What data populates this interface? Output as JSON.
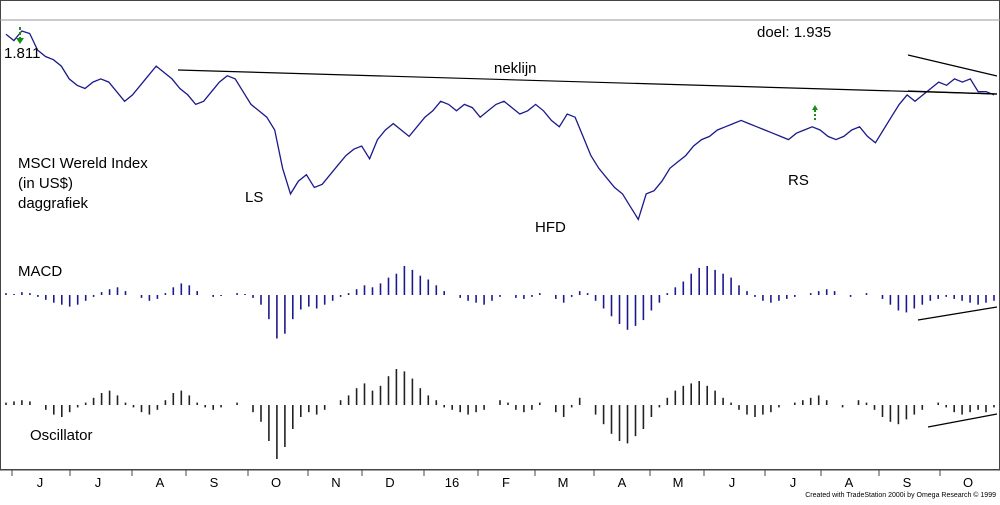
{
  "chart_data": [
    {
      "type": "line",
      "title": "",
      "subtitle": "",
      "labels": {
        "series": "MSCI Wereld Index",
        "unit": "(in US$)",
        "period": "daggrafiek",
        "start_value": "1.811",
        "target": "doel: 1.935",
        "neckline": "neklijn",
        "left_shoulder": "LS",
        "head": "HFD",
        "right_shoulder": "RS"
      },
      "x_ticks": [
        "J",
        "J",
        "A",
        "S",
        "O",
        "N",
        "D",
        "16",
        "F",
        "M",
        "A",
        "M",
        "J",
        "J",
        "A",
        "S",
        "O"
      ],
      "ylim": [
        1480,
        1840
      ],
      "series": [
        {
          "values": [
            1810,
            1800,
            1815,
            1811,
            1785,
            1775,
            1770,
            1760,
            1740,
            1730,
            1725,
            1735,
            1740,
            1735,
            1720,
            1705,
            1715,
            1730,
            1745,
            1760,
            1750,
            1740,
            1725,
            1715,
            1700,
            1705,
            1720,
            1735,
            1745,
            1740,
            1720,
            1700,
            1690,
            1680,
            1660,
            1600,
            1560,
            1580,
            1590,
            1570,
            1575,
            1590,
            1605,
            1620,
            1630,
            1635,
            1615,
            1645,
            1660,
            1670,
            1660,
            1650,
            1665,
            1680,
            1690,
            1705,
            1700,
            1690,
            1700,
            1695,
            1680,
            1690,
            1700,
            1705,
            1695,
            1685,
            1690,
            1700,
            1690,
            1675,
            1665,
            1685,
            1680,
            1650,
            1620,
            1600,
            1585,
            1570,
            1560,
            1540,
            1520,
            1560,
            1565,
            1580,
            1600,
            1610,
            1620,
            1635,
            1645,
            1650,
            1660,
            1665,
            1670,
            1675,
            1670,
            1665,
            1660,
            1655,
            1650,
            1645,
            1655,
            1660,
            1665,
            1660,
            1650,
            1645,
            1650,
            1660,
            1665,
            1650,
            1640,
            1660,
            1680,
            1700,
            1715,
            1705,
            1715,
            1725,
            1735,
            1730,
            1740,
            1735,
            1740,
            1720,
            1720,
            1715
          ],
          "x_index_note": ""
        }
      ],
      "neckline_line": {
        "from": [
          0,
          1710
        ],
        "to": [
          122,
          1690
        ]
      }
    },
    {
      "type": "bar",
      "title": "",
      "labels": {
        "name": "MACD"
      },
      "ylim": [
        -60,
        60
      ],
      "values": [
        2,
        1,
        3,
        2,
        -2,
        -5,
        -8,
        -10,
        -12,
        -10,
        -6,
        -2,
        3,
        6,
        8,
        4,
        0,
        -3,
        -6,
        -4,
        2,
        8,
        12,
        10,
        4,
        0,
        -2,
        -1,
        0,
        2,
        1,
        -3,
        -10,
        -25,
        -45,
        -40,
        -25,
        -15,
        -12,
        -14,
        -10,
        -6,
        -2,
        2,
        6,
        10,
        8,
        12,
        18,
        22,
        30,
        26,
        20,
        16,
        10,
        4,
        0,
        -3,
        -6,
        -8,
        -10,
        -6,
        -2,
        0,
        -3,
        -4,
        -2,
        2,
        0,
        -4,
        -8,
        -2,
        4,
        2,
        -6,
        -14,
        -22,
        -30,
        -36,
        -32,
        -26,
        -16,
        -8,
        2,
        8,
        14,
        22,
        28,
        30,
        26,
        22,
        18,
        10,
        4,
        -2,
        -6,
        -8,
        -6,
        -4,
        -2,
        0,
        2,
        4,
        6,
        4,
        0,
        -2,
        0,
        2,
        0,
        -4,
        -10,
        -16,
        -18,
        -14,
        -10,
        -6,
        -4,
        -2,
        -4,
        -6,
        -8,
        -10,
        -8,
        -6
      ]
    },
    {
      "type": "bar",
      "title": "",
      "labels": {
        "name": "Oscillator"
      },
      "ylim": [
        -50,
        50
      ],
      "values": [
        2,
        3,
        4,
        3,
        0,
        -4,
        -8,
        -10,
        -6,
        -2,
        2,
        6,
        10,
        12,
        8,
        2,
        -2,
        -6,
        -8,
        -4,
        4,
        10,
        12,
        8,
        2,
        -2,
        -4,
        -2,
        0,
        2,
        0,
        -6,
        -14,
        -30,
        -45,
        -35,
        -20,
        -10,
        -6,
        -8,
        -4,
        0,
        4,
        8,
        14,
        18,
        12,
        16,
        24,
        30,
        28,
        22,
        14,
        8,
        4,
        -2,
        -4,
        -6,
        -8,
        -6,
        -4,
        0,
        4,
        2,
        -4,
        -6,
        -4,
        2,
        0,
        -6,
        -10,
        -2,
        6,
        0,
        -8,
        -16,
        -24,
        -30,
        -32,
        -26,
        -20,
        -10,
        -2,
        6,
        12,
        16,
        18,
        20,
        16,
        12,
        6,
        2,
        -4,
        -8,
        -10,
        -8,
        -6,
        -2,
        0,
        2,
        4,
        6,
        8,
        4,
        0,
        -2,
        0,
        4,
        2,
        -4,
        -10,
        -14,
        -16,
        -12,
        -8,
        -4,
        0,
        2,
        -2,
        -6,
        -8,
        -6,
        -4,
        -6,
        -2
      ]
    }
  ],
  "footer": {
    "credit": "Created with TradeStation 2000i by Omega Research © 1999"
  },
  "colors": {
    "price_line": "#1a1a8c",
    "macd_bars": "#1a1a8c",
    "osc_bars": "#222222",
    "trend_line": "#000000",
    "arrow": "#1a8c1a"
  }
}
